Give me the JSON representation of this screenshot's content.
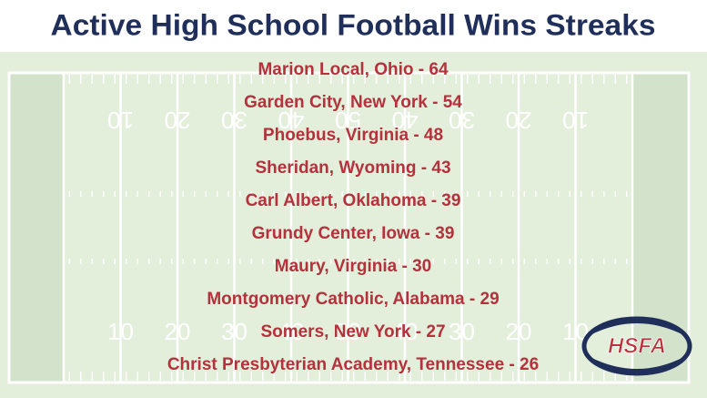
{
  "title": "Active High School Football Wins Streaks",
  "streaks": [
    "Marion Local, Ohio - 64",
    "Garden City, New York - 54",
    "Phoebus, Virginia - 48",
    "Sheridan, Wyoming - 43",
    "Carl Albert, Oklahoma - 39",
    "Grundy Center, Iowa - 39",
    "Maury, Virginia - 30",
    "Montgomery Catholic, Alabama - 29",
    "Somers, New York - 27",
    "Christ Presbyterian Academy, Tennessee - 26"
  ],
  "field": {
    "yard_numbers": [
      "10",
      "20",
      "30",
      "40",
      "50",
      "40",
      "30",
      "20",
      "10"
    ]
  },
  "logo": {
    "text": "HSFA"
  }
}
